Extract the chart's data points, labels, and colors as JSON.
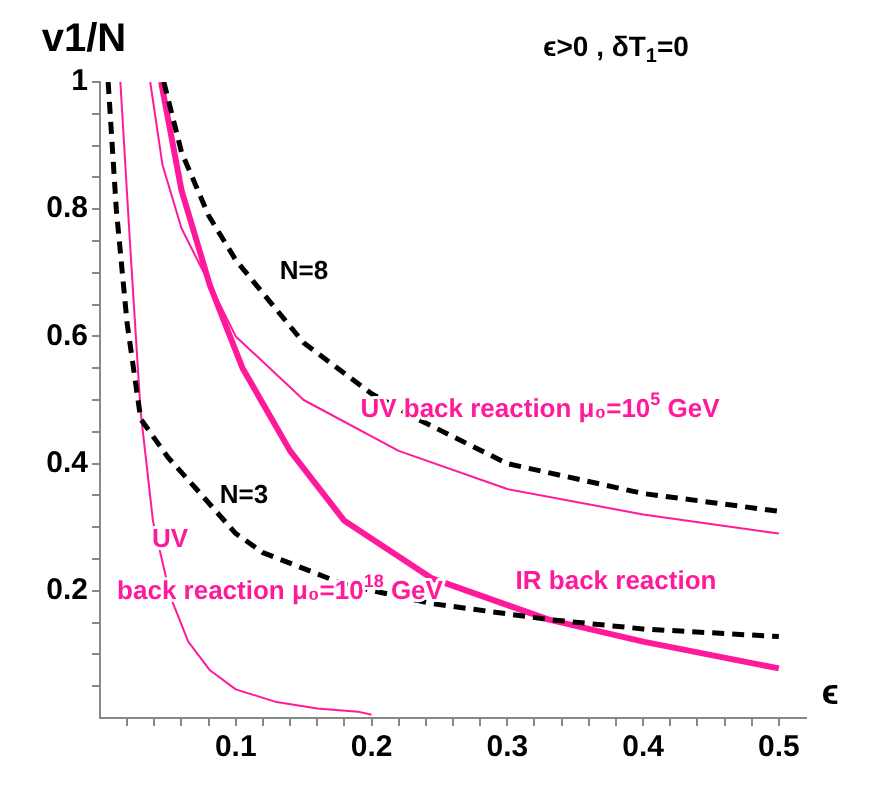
{
  "chart_data": {
    "type": "line",
    "title": "ϵ>0 , δT$_{1}$=0",
    "xlabel": "ϵ",
    "ylabel": "v1/N",
    "xlim": [
      0,
      0.52
    ],
    "ylim": [
      0,
      1
    ],
    "xticks": [
      {
        "value": 0.02,
        "label": null
      },
      {
        "value": 0.04,
        "label": null
      },
      {
        "value": 0.06,
        "label": null
      },
      {
        "value": 0.08,
        "label": null
      },
      0.1,
      {
        "value": 0.12,
        "label": null
      },
      {
        "value": 0.14,
        "label": null
      },
      {
        "value": 0.16,
        "label": null
      },
      {
        "value": 0.18,
        "label": null
      },
      0.2,
      {
        "value": 0.22,
        "label": null
      },
      {
        "value": 0.24,
        "label": null
      },
      {
        "value": 0.26,
        "label": null
      },
      {
        "value": 0.28,
        "label": null
      },
      0.3,
      {
        "value": 0.32,
        "label": null
      },
      {
        "value": 0.34,
        "label": null
      },
      {
        "value": 0.36,
        "label": null
      },
      {
        "value": 0.38,
        "label": null
      },
      0.4,
      {
        "value": 0.42,
        "label": null
      },
      {
        "value": 0.44,
        "label": null
      },
      {
        "value": 0.46,
        "label": null
      },
      {
        "value": 0.48,
        "label": null
      },
      0.5
    ],
    "yticks": [
      {
        "value": 0.05,
        "label": null
      },
      {
        "value": 0.1,
        "label": null
      },
      {
        "value": 0.15,
        "label": null
      },
      0.2,
      {
        "value": 0.25,
        "label": null
      },
      {
        "value": 0.3,
        "label": null
      },
      {
        "value": 0.35,
        "label": null
      },
      0.4,
      {
        "value": 0.45,
        "label": null
      },
      {
        "value": 0.5,
        "label": null
      },
      {
        "value": 0.55,
        "label": null
      },
      0.6,
      {
        "value": 0.65,
        "label": null
      },
      {
        "value": 0.7,
        "label": null
      },
      {
        "value": 0.75,
        "label": null
      },
      0.8,
      {
        "value": 0.85,
        "label": null
      },
      {
        "value": 0.9,
        "label": null
      },
      {
        "value": 0.95,
        "label": null
      },
      1
    ],
    "grid": false,
    "legend": false,
    "marker": "none",
    "series": [
      {
        "color": "#000000",
        "line_style": "dashed",
        "x": [
          0.047,
          0.06,
          0.08,
          0.1,
          0.15,
          0.2,
          0.234,
          0.3,
          0.4,
          0.5
        ],
        "values": [
          1,
          0.89,
          0.79,
          0.72,
          0.59,
          0.51,
          0.47,
          0.4,
          0.353,
          0.325
        ]
      },
      {
        "color": "#000000",
        "line_style": "dashed",
        "x": [
          0.006,
          0.012,
          0.02,
          0.03,
          0.05,
          0.071,
          0.1,
          0.12,
          0.18,
          0.244,
          0.33,
          0.4,
          0.5
        ],
        "values": [
          1,
          0.8,
          0.62,
          0.47,
          0.41,
          0.36,
          0.29,
          0.26,
          0.21,
          0.18,
          0.155,
          0.14,
          0.128
        ]
      },
      {
        "color": "#ff1a9c",
        "line_style": "solid",
        "x": [
          0.037,
          0.046,
          0.06,
          0.086,
          0.1,
          0.15,
          0.22,
          0.3,
          0.4,
          0.5
        ],
        "values": [
          1,
          0.87,
          0.77,
          0.66,
          0.6,
          0.5,
          0.42,
          0.36,
          0.32,
          0.29
        ]
      },
      {
        "color": "#ff1a9c",
        "line_style": "solid",
        "x": [
          0.045,
          0.06,
          0.081,
          0.105,
          0.14,
          0.18,
          0.244,
          0.33,
          0.4,
          0.5
        ],
        "values": [
          1,
          0.83,
          0.68,
          0.55,
          0.42,
          0.31,
          0.22,
          0.155,
          0.12,
          0.078
        ]
      },
      {
        "color": "#ff1a9c",
        "line_style": "solid",
        "x": [
          0.015,
          0.022,
          0.027,
          0.03,
          0.039,
          0.052,
          0.065,
          0.081,
          0.1,
          0.13,
          0.16,
          0.19,
          0.2
        ],
        "values": [
          1,
          0.75,
          0.58,
          0.48,
          0.31,
          0.19,
          0.12,
          0.075,
          0.045,
          0.025,
          0.015,
          0.01,
          0.005
        ]
      }
    ],
    "annotations": [
      "N=8",
      "N=3",
      "UV back reaction μ₀=10$^{5}$ GeV",
      "UV",
      "back reaction μ₀=10$^{18}$ GeV",
      "IR back reaction"
    ]
  }
}
